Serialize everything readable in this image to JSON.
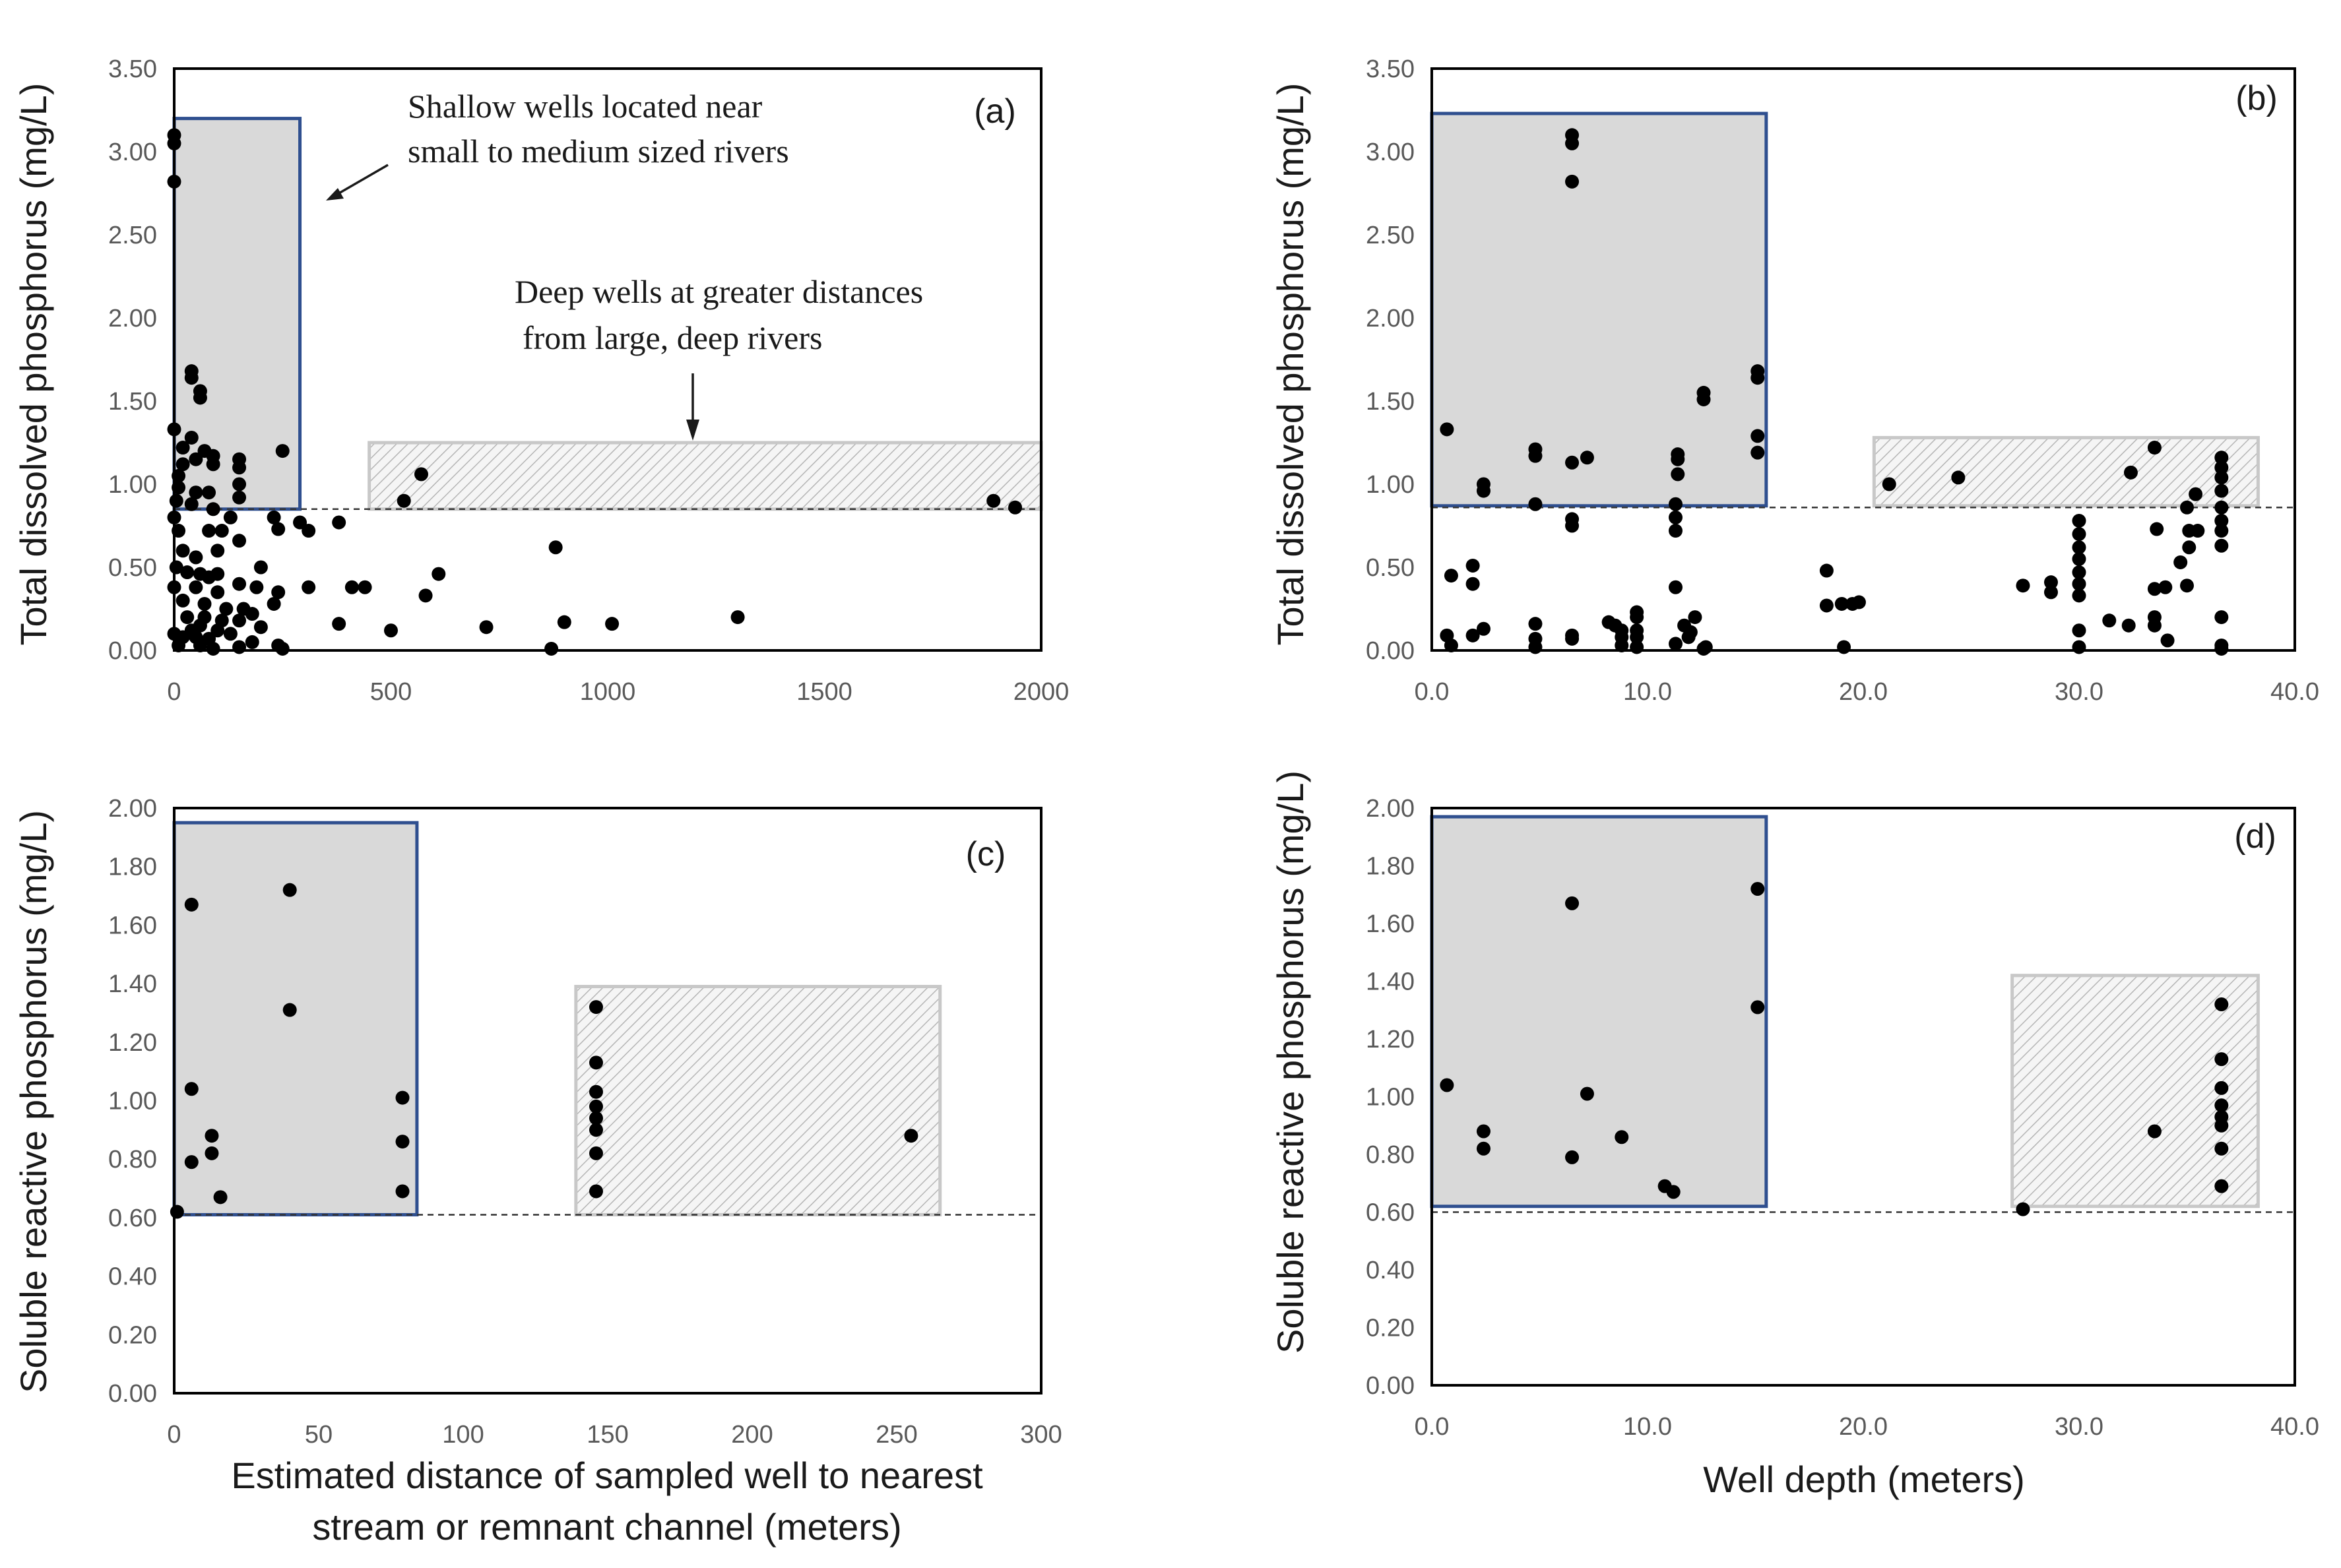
{
  "chart_data": [
    {
      "id": "a",
      "type": "scatter",
      "panel_label": "(a)",
      "ylabel": "Total dissolved phosphorus (mg/L)",
      "xlabel": "",
      "xlim": [
        0,
        2000
      ],
      "ylim": [
        0,
        3.5
      ],
      "xticks": [
        "0",
        "500",
        "1000",
        "1500",
        "2000"
      ],
      "yticks": [
        "0.00",
        "0.50",
        "1.00",
        "1.50",
        "2.00",
        "2.50",
        "3.00",
        "3.50"
      ],
      "threshold": 0.85,
      "shallow_box": {
        "x": [
          -30,
          290
        ],
        "y": [
          0.85,
          3.2
        ]
      },
      "deep_box": {
        "x": [
          450,
          2000
        ],
        "y": [
          0.85,
          1.25
        ]
      },
      "annotations": [
        {
          "lines": [
            "Shallow wells located near",
            "small to medium sized rivers"
          ]
        },
        {
          "lines": [
            "Deep wells at greater distances",
            "from large, deep rivers"
          ]
        }
      ],
      "points": [
        [
          0,
          3.1
        ],
        [
          0,
          3.05
        ],
        [
          0,
          2.82
        ],
        [
          40,
          1.68
        ],
        [
          40,
          1.64
        ],
        [
          60,
          1.56
        ],
        [
          60,
          1.52
        ],
        [
          0,
          1.33
        ],
        [
          40,
          1.28
        ],
        [
          20,
          1.22
        ],
        [
          70,
          1.2
        ],
        [
          90,
          1.17
        ],
        [
          90,
          1.12
        ],
        [
          20,
          1.12
        ],
        [
          50,
          1.15
        ],
        [
          10,
          1.05
        ],
        [
          150,
          1.15
        ],
        [
          150,
          1.1
        ],
        [
          10,
          0.98
        ],
        [
          50,
          0.95
        ],
        [
          80,
          0.95
        ],
        [
          150,
          1.0
        ],
        [
          150,
          0.92
        ],
        [
          250,
          1.2
        ],
        [
          5,
          0.9
        ],
        [
          40,
          0.88
        ],
        [
          90,
          0.85
        ],
        [
          0,
          0.8
        ],
        [
          130,
          0.8
        ],
        [
          230,
          0.8
        ],
        [
          290,
          0.77
        ],
        [
          380,
          0.77
        ],
        [
          530,
          0.9
        ],
        [
          570,
          1.06
        ],
        [
          1890,
          0.9
        ],
        [
          1940,
          0.86
        ],
        [
          10,
          0.72
        ],
        [
          80,
          0.72
        ],
        [
          110,
          0.72
        ],
        [
          240,
          0.73
        ],
        [
          310,
          0.72
        ],
        [
          150,
          0.66
        ],
        [
          20,
          0.6
        ],
        [
          50,
          0.56
        ],
        [
          100,
          0.6
        ],
        [
          5,
          0.5
        ],
        [
          30,
          0.47
        ],
        [
          60,
          0.46
        ],
        [
          80,
          0.44
        ],
        [
          100,
          0.46
        ],
        [
          200,
          0.5
        ],
        [
          0,
          0.38
        ],
        [
          50,
          0.38
        ],
        [
          100,
          0.35
        ],
        [
          150,
          0.4
        ],
        [
          240,
          0.35
        ],
        [
          190,
          0.38
        ],
        [
          310,
          0.38
        ],
        [
          410,
          0.38
        ],
        [
          440,
          0.38
        ],
        [
          610,
          0.46
        ],
        [
          580,
          0.33
        ],
        [
          880,
          0.62
        ],
        [
          20,
          0.3
        ],
        [
          70,
          0.28
        ],
        [
          120,
          0.25
        ],
        [
          160,
          0.25
        ],
        [
          180,
          0.22
        ],
        [
          230,
          0.28
        ],
        [
          30,
          0.2
        ],
        [
          70,
          0.2
        ],
        [
          110,
          0.18
        ],
        [
          150,
          0.18
        ],
        [
          380,
          0.16
        ],
        [
          60,
          0.15
        ],
        [
          100,
          0.12
        ],
        [
          40,
          0.12
        ],
        [
          200,
          0.14
        ],
        [
          500,
          0.12
        ],
        [
          720,
          0.14
        ],
        [
          900,
          0.17
        ],
        [
          1010,
          0.16
        ],
        [
          1300,
          0.2
        ],
        [
          0,
          0.1
        ],
        [
          20,
          0.08
        ],
        [
          50,
          0.08
        ],
        [
          80,
          0.07
        ],
        [
          130,
          0.1
        ],
        [
          180,
          0.05
        ],
        [
          10,
          0.03
        ],
        [
          60,
          0.03
        ],
        [
          90,
          0.01
        ],
        [
          150,
          0.02
        ],
        [
          240,
          0.03
        ],
        [
          250,
          0.01
        ],
        [
          870,
          0.01
        ]
      ]
    },
    {
      "id": "b",
      "type": "scatter",
      "panel_label": "(b)",
      "ylabel": "Total dissolved phosphorus (mg/L)",
      "xlabel": "",
      "xlim": [
        0,
        40
      ],
      "ylim": [
        0,
        3.5
      ],
      "xticks": [
        "0.0",
        "10.0",
        "20.0",
        "30.0",
        "40.0"
      ],
      "yticks": [
        "0.00",
        "0.50",
        "1.00",
        "1.50",
        "2.00",
        "2.50",
        "3.00",
        "3.50"
      ],
      "threshold": 0.86,
      "shallow_box": {
        "x": [
          0,
          15.5
        ],
        "y": [
          0.87,
          3.23
        ]
      },
      "deep_box": {
        "x": [
          20.5,
          38.3
        ],
        "y": [
          0.87,
          1.28
        ]
      },
      "points": [
        [
          6.5,
          3.1
        ],
        [
          6.5,
          3.05
        ],
        [
          6.5,
          2.82
        ],
        [
          15.1,
          1.68
        ],
        [
          15.1,
          1.64
        ],
        [
          12.6,
          1.55
        ],
        [
          12.6,
          1.51
        ],
        [
          0.7,
          1.33
        ],
        [
          15.1,
          1.29
        ],
        [
          15.1,
          1.19
        ],
        [
          4.8,
          1.21
        ],
        [
          4.8,
          1.17
        ],
        [
          7.2,
          1.16
        ],
        [
          6.5,
          1.13
        ],
        [
          11.4,
          1.18
        ],
        [
          11.4,
          1.15
        ],
        [
          11.4,
          1.06
        ],
        [
          2.4,
          1.0
        ],
        [
          2.4,
          0.96
        ],
        [
          4.8,
          0.88
        ],
        [
          11.3,
          0.88
        ],
        [
          6.5,
          0.79
        ],
        [
          6.5,
          0.75
        ],
        [
          11.3,
          0.8
        ],
        [
          11.3,
          0.72
        ],
        [
          21.2,
          1.0
        ],
        [
          24.4,
          1.04
        ],
        [
          32.4,
          1.07
        ],
        [
          33.5,
          1.22
        ],
        [
          36.6,
          1.16
        ],
        [
          36.6,
          1.1
        ],
        [
          36.6,
          1.04
        ],
        [
          36.6,
          0.96
        ],
        [
          35.4,
          0.94
        ],
        [
          36.6,
          0.86
        ],
        [
          35.0,
          0.86
        ],
        [
          36.6,
          0.78
        ],
        [
          35.1,
          0.72
        ],
        [
          35.5,
          0.72
        ],
        [
          33.6,
          0.73
        ],
        [
          36.6,
          0.72
        ],
        [
          35.1,
          0.62
        ],
        [
          36.6,
          0.63
        ],
        [
          34.7,
          0.53
        ],
        [
          0.9,
          0.45
        ],
        [
          1.9,
          0.51
        ],
        [
          1.9,
          0.4
        ],
        [
          18.3,
          0.48
        ],
        [
          30.0,
          0.78
        ],
        [
          30.0,
          0.7
        ],
        [
          30.0,
          0.62
        ],
        [
          30.0,
          0.55
        ],
        [
          30.0,
          0.47
        ],
        [
          30.0,
          0.4
        ],
        [
          30.0,
          0.33
        ],
        [
          28.7,
          0.41
        ],
        [
          28.7,
          0.35
        ],
        [
          27.4,
          0.39
        ],
        [
          33.5,
          0.37
        ],
        [
          34.0,
          0.38
        ],
        [
          35.0,
          0.39
        ],
        [
          11.3,
          0.38
        ],
        [
          18.3,
          0.27
        ],
        [
          19.0,
          0.28
        ],
        [
          19.5,
          0.28
        ],
        [
          19.8,
          0.29
        ],
        [
          8.2,
          0.17
        ],
        [
          8.5,
          0.15
        ],
        [
          9.5,
          0.23
        ],
        [
          9.5,
          0.2
        ],
        [
          12.2,
          0.2
        ],
        [
          4.8,
          0.16
        ],
        [
          31.4,
          0.18
        ],
        [
          32.3,
          0.15
        ],
        [
          33.5,
          0.2
        ],
        [
          33.5,
          0.15
        ],
        [
          36.6,
          0.2
        ],
        [
          2.4,
          0.13
        ],
        [
          1.9,
          0.09
        ],
        [
          0.7,
          0.09
        ],
        [
          8.8,
          0.12
        ],
        [
          8.8,
          0.08
        ],
        [
          9.5,
          0.12
        ],
        [
          9.5,
          0.08
        ],
        [
          11.7,
          0.15
        ],
        [
          12.0,
          0.11
        ],
        [
          11.9,
          0.08
        ],
        [
          6.5,
          0.09
        ],
        [
          6.5,
          0.07
        ],
        [
          4.8,
          0.07
        ],
        [
          30.0,
          0.12
        ],
        [
          34.1,
          0.06
        ],
        [
          0.9,
          0.03
        ],
        [
          4.8,
          0.02
        ],
        [
          8.8,
          0.03
        ],
        [
          9.5,
          0.02
        ],
        [
          11.3,
          0.04
        ],
        [
          12.6,
          0.01
        ],
        [
          12.7,
          0.02
        ],
        [
          19.1,
          0.02
        ],
        [
          30.0,
          0.02
        ],
        [
          36.6,
          0.03
        ],
        [
          36.6,
          0.01
        ]
      ]
    },
    {
      "id": "c",
      "type": "scatter",
      "panel_label": "(c)",
      "ylabel": "Soluble reactive phosphorus (mg/L)",
      "xlabel_lines": [
        "Estimated distance of sampled well to nearest",
        "stream or remnant channel (meters)"
      ],
      "xlim": [
        0,
        300
      ],
      "ylim": [
        0,
        2.0
      ],
      "xticks": [
        "0",
        "50",
        "100",
        "150",
        "200",
        "250",
        "300"
      ],
      "yticks": [
        "0.00",
        "0.20",
        "0.40",
        "0.60",
        "0.80",
        "1.00",
        "1.20",
        "1.40",
        "1.60",
        "1.80",
        "2.00"
      ],
      "threshold": 0.61,
      "shallow_box": {
        "x": [
          0,
          84
        ],
        "y": [
          0.61,
          1.95
        ]
      },
      "deep_box": {
        "x": [
          139,
          265
        ],
        "y": [
          0.61,
          1.39
        ]
      },
      "points": [
        [
          6,
          1.67
        ],
        [
          40,
          1.72
        ],
        [
          40,
          1.31
        ],
        [
          6,
          1.04
        ],
        [
          13,
          0.88
        ],
        [
          13,
          0.82
        ],
        [
          6,
          0.79
        ],
        [
          16,
          0.67
        ],
        [
          1,
          0.62
        ],
        [
          79,
          1.01
        ],
        [
          79,
          0.86
        ],
        [
          79,
          0.69
        ],
        [
          146,
          1.32
        ],
        [
          146,
          1.13
        ],
        [
          146,
          1.03
        ],
        [
          146,
          0.98
        ],
        [
          146,
          0.94
        ],
        [
          146,
          0.9
        ],
        [
          146,
          0.82
        ],
        [
          146,
          0.69
        ],
        [
          255,
          0.88
        ]
      ]
    },
    {
      "id": "d",
      "type": "scatter",
      "panel_label": "(d)",
      "ylabel": "Soluble reactive phosphorus (mg/L)",
      "xlabel_lines": [
        "Well depth (meters)"
      ],
      "xlim": [
        0,
        40
      ],
      "ylim": [
        0,
        2.0
      ],
      "xticks": [
        "0.0",
        "10.0",
        "20.0",
        "30.0",
        "40.0"
      ],
      "yticks": [
        "0.00",
        "0.20",
        "0.40",
        "0.60",
        "0.80",
        "1.00",
        "1.20",
        "1.40",
        "1.60",
        "1.80",
        "2.00"
      ],
      "threshold": 0.6,
      "shallow_box": {
        "x": [
          0,
          15.5
        ],
        "y": [
          0.62,
          1.97
        ]
      },
      "deep_box": {
        "x": [
          26.9,
          38.3
        ],
        "y": [
          0.62,
          1.42
        ]
      },
      "points": [
        [
          6.5,
          1.67
        ],
        [
          15.1,
          1.72
        ],
        [
          15.1,
          1.31
        ],
        [
          0.7,
          1.04
        ],
        [
          2.4,
          0.88
        ],
        [
          2.4,
          0.82
        ],
        [
          7.2,
          1.01
        ],
        [
          8.8,
          0.86
        ],
        [
          6.5,
          0.79
        ],
        [
          10.8,
          0.69
        ],
        [
          11.2,
          0.67
        ],
        [
          27.4,
          0.61
        ],
        [
          33.5,
          0.88
        ],
        [
          36.6,
          1.32
        ],
        [
          36.6,
          1.13
        ],
        [
          36.6,
          1.03
        ],
        [
          36.6,
          0.97
        ],
        [
          36.6,
          0.93
        ],
        [
          36.6,
          0.9
        ],
        [
          36.6,
          0.82
        ],
        [
          36.6,
          0.69
        ]
      ]
    }
  ]
}
